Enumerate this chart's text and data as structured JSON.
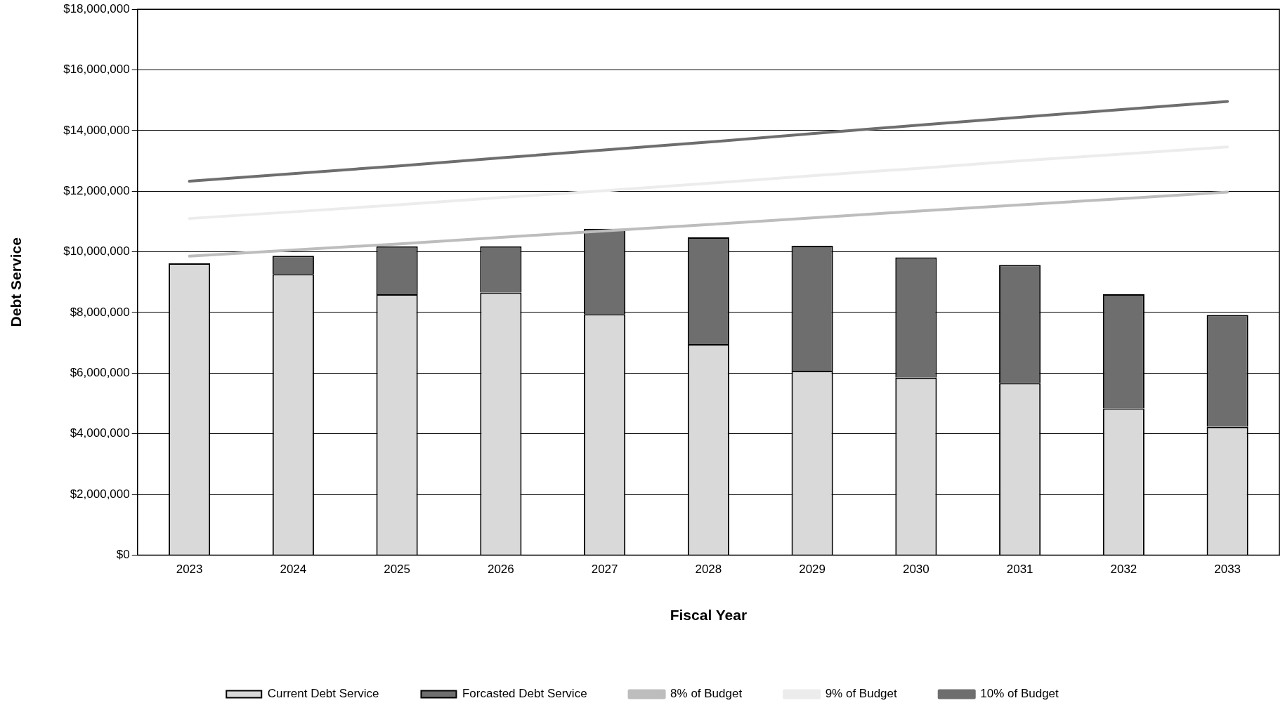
{
  "chart_data": {
    "type": "bar",
    "xlabel": "Fiscal Year",
    "ylabel": "Debt Service",
    "categories": [
      "2023",
      "2024",
      "2025",
      "2026",
      "2027",
      "2028",
      "2029",
      "2030",
      "2031",
      "2032",
      "2033"
    ],
    "stacked": true,
    "series": [
      {
        "name": "Current Debt Service",
        "color": "#d9d9d9",
        "values": [
          9620000,
          9270000,
          8600000,
          8660000,
          7950000,
          6960000,
          6080000,
          5850000,
          5670000,
          4840000,
          4230000
        ]
      },
      {
        "name": "Forcasted Debt Service",
        "color": "#6e6e6e",
        "values": [
          0,
          600000,
          1580000,
          1520000,
          2810000,
          3520000,
          4120000,
          3970000,
          3900000,
          3760000,
          3690000
        ]
      },
      {
        "name": "8% of Budget",
        "type": "line",
        "color": "#bdbdbd",
        "values": [
          9860000,
          10060000,
          10260000,
          10480000,
          10690000,
          10900000,
          11120000,
          11340000,
          11550000,
          11760000,
          11970000
        ]
      },
      {
        "name": "9% of Budget",
        "type": "line",
        "color": "#ececec",
        "values": [
          11100000,
          11320000,
          11550000,
          11790000,
          12020000,
          12260000,
          12510000,
          12750000,
          13000000,
          13230000,
          13460000
        ]
      },
      {
        "name": "10% of Budget",
        "type": "line",
        "color": "#6e6e6e",
        "values": [
          12330000,
          12580000,
          12830000,
          13100000,
          13360000,
          13620000,
          13900000,
          14170000,
          14440000,
          14700000,
          14960000
        ]
      }
    ],
    "ylim": [
      0,
      18000000
    ],
    "yticks": [
      {
        "value": 0,
        "label": "$0"
      },
      {
        "value": 2000000,
        "label": "$2,000,000"
      },
      {
        "value": 4000000,
        "label": "$4,000,000"
      },
      {
        "value": 6000000,
        "label": "$6,000,000"
      },
      {
        "value": 8000000,
        "label": "$8,000,000"
      },
      {
        "value": 10000000,
        "label": "$10,000,000"
      },
      {
        "value": 12000000,
        "label": "$12,000,000"
      },
      {
        "value": 14000000,
        "label": "$14,000,000"
      },
      {
        "value": 16000000,
        "label": "$16,000,000"
      },
      {
        "value": 18000000,
        "label": "$18,000,000"
      }
    ],
    "grid": "y",
    "legend": "bottom",
    "marker": "none",
    "line_style": "solid"
  }
}
